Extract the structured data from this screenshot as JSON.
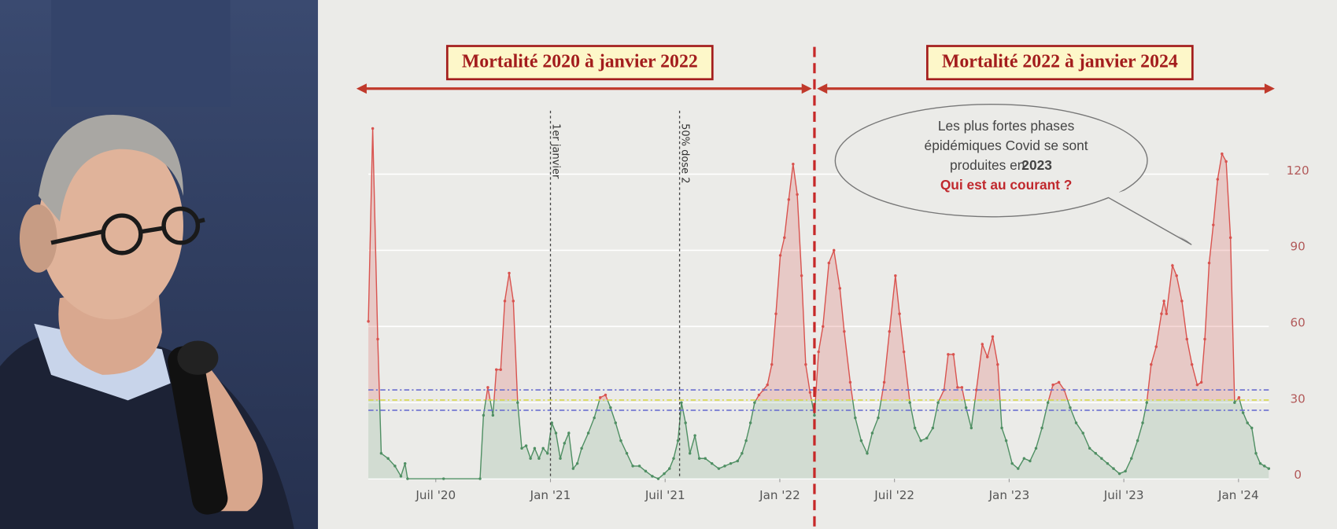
{
  "chart_data": {
    "type": "line",
    "periods": [
      "Mortalité 2020 à janvier 2022",
      "Mortalité 2022 à janvier 2024"
    ],
    "callout": [
      "Les plus fortes phases",
      "épidémiques Covid se sont",
      "produites en",
      "2023",
      "Qui est au courant ?"
    ],
    "vlines": [
      {
        "x": 2021.0,
        "label": "1er janvier"
      },
      {
        "x": 2021.563,
        "label": "50% dose 2"
      }
    ],
    "divider_x": 2022.151,
    "reference_lines": [
      {
        "value": 35,
        "color": "#6b6fd0"
      },
      {
        "value": 31,
        "color": "#d8d84a"
      },
      {
        "value": 27,
        "color": "#6b6fd0"
      }
    ],
    "threshold": 31,
    "series": [
      {
        "color": "#d9534f",
        "color_below": "#4f8f63",
        "x": [
          2020.206,
          2020.225,
          2020.247,
          2020.262,
          2020.292,
          2020.322,
          2020.348,
          2020.366,
          2020.377,
          2020.534,
          2020.693,
          2020.708,
          2020.727,
          2020.749,
          2020.764,
          2020.783,
          2020.801,
          2020.82,
          2020.838,
          2020.857,
          2020.875,
          2020.894,
          2020.913,
          2020.931,
          2020.95,
          2020.968,
          2020.987,
          2021.006,
          2021.024,
          2021.043,
          2021.061,
          2021.08,
          2021.099,
          2021.117,
          2021.136,
          2021.165,
          2021.191,
          2021.217,
          2021.24,
          2021.262,
          2021.284,
          2021.307,
          2021.333,
          2021.359,
          2021.388,
          2021.415,
          2021.444,
          2021.47,
          2021.496,
          2021.519,
          2021.537,
          2021.556,
          2021.571,
          2021.589,
          2021.608,
          2021.63,
          2021.649,
          2021.675,
          2021.704,
          2021.734,
          2021.76,
          2021.786,
          2021.816,
          2021.835,
          2021.853,
          2021.872,
          2021.89,
          2021.909,
          2021.928,
          2021.946,
          2021.965,
          2021.983,
          2022.002,
          2022.02,
          2022.039,
          2022.058,
          2022.076,
          2022.095,
          2022.113,
          2022.132,
          2022.151,
          2022.169,
          2022.188,
          2022.214,
          2022.236,
          2022.262,
          2022.281,
          2022.307,
          2022.329,
          2022.355,
          2022.381,
          2022.403,
          2022.429,
          2022.455,
          2022.478,
          2022.504,
          2022.522,
          2022.541,
          2022.567,
          2022.589,
          2022.615,
          2022.641,
          2022.667,
          2022.69,
          2022.716,
          2022.734,
          2022.757,
          2022.775,
          2022.794,
          2022.812,
          2022.835,
          2022.857,
          2022.883,
          2022.905,
          2022.928,
          2022.95,
          2022.968,
          2022.987,
          2023.013,
          2023.039,
          2023.065,
          2023.091,
          2023.117,
          2023.143,
          2023.169,
          2023.191,
          2023.217,
          2023.24,
          2023.266,
          2023.292,
          2023.322,
          2023.351,
          2023.377,
          2023.403,
          2023.429,
          2023.455,
          2023.481,
          2023.507,
          2023.533,
          2023.56,
          2023.582,
          2023.6,
          2023.619,
          2023.641,
          2023.664,
          2023.675,
          2023.686,
          2023.712,
          2023.73,
          2023.753,
          2023.775,
          2023.797,
          2023.82,
          2023.838,
          2023.853,
          2023.872,
          2023.89,
          2023.909,
          2023.928,
          2023.946,
          2023.965,
          2023.983,
          2024.002,
          2024.02,
          2024.039,
          2024.058,
          2024.076,
          2024.095,
          2024.113,
          2024.132
        ],
        "values": [
          62,
          138,
          55,
          10,
          8,
          5,
          1,
          6,
          0,
          0,
          0,
          25,
          36,
          25,
          43,
          43,
          70,
          81,
          70,
          30,
          12,
          13,
          8,
          12,
          8,
          12,
          10,
          22,
          18,
          8,
          14,
          18,
          4,
          6,
          12,
          18,
          24,
          32,
          33,
          28,
          22,
          15,
          10,
          5,
          5,
          3,
          1,
          0,
          2,
          4,
          8,
          15,
          30,
          22,
          10,
          17,
          8,
          8,
          6,
          4,
          5,
          6,
          7,
          10,
          15,
          22,
          30,
          33,
          35,
          37,
          45,
          65,
          88,
          95,
          110,
          124,
          112,
          80,
          45,
          34,
          25,
          50,
          60,
          85,
          90,
          75,
          58,
          38,
          24,
          15,
          10,
          18,
          24,
          38,
          58,
          80,
          65,
          50,
          30,
          20,
          15,
          16,
          20,
          30,
          35,
          49,
          49,
          36,
          36,
          28,
          20,
          35,
          53,
          48,
          56,
          45,
          20,
          15,
          6,
          4,
          8,
          7,
          12,
          20,
          30,
          37,
          38,
          35,
          28,
          22,
          18,
          12,
          10,
          8,
          6,
          4,
          2,
          3,
          8,
          15,
          22,
          30,
          45,
          52,
          65,
          70,
          65,
          84,
          80,
          70,
          55,
          45,
          37,
          38,
          55,
          85,
          100,
          118,
          128,
          125,
          95,
          30,
          32,
          26,
          22,
          20,
          10,
          6,
          5,
          4
        ]
      }
    ],
    "xlim": [
      2020.206,
      2024.132
    ],
    "xticks": [
      {
        "value": 2020.5,
        "label": "Juil '20"
      },
      {
        "value": 2021.0,
        "label": "Jan '21"
      },
      {
        "value": 2021.5,
        "label": "Juil '21"
      },
      {
        "value": 2022.0,
        "label": "Jan '22"
      },
      {
        "value": 2022.5,
        "label": "Juil '22"
      },
      {
        "value": 2023.0,
        "label": "Jan '23"
      },
      {
        "value": 2023.5,
        "label": "Juil '23"
      },
      {
        "value": 2024.0,
        "label": "Jan '24"
      }
    ],
    "ylim": [
      0,
      145
    ],
    "yticks": [
      0,
      30,
      60,
      90,
      120
    ],
    "grid": true
  }
}
